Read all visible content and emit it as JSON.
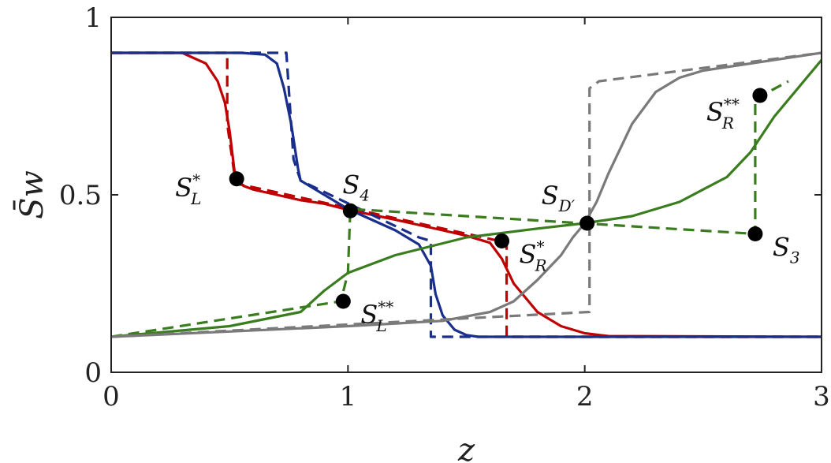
{
  "chart_data": {
    "type": "line",
    "xlabel": "z",
    "ylabel": "S̄w",
    "xlim": [
      0,
      3
    ],
    "ylim": [
      0,
      1
    ],
    "xticks": [
      0,
      1,
      2,
      3
    ],
    "yticks": [
      0,
      0.5,
      1
    ],
    "xtick_labels": [
      "0",
      "1",
      "2",
      "3"
    ],
    "ytick_labels": [
      "0",
      "0.5",
      "1"
    ],
    "grid": false,
    "series": [
      {
        "color": "#c00000",
        "style": "solid",
        "x": [
          0,
          0.3,
          0.4,
          0.45,
          0.48,
          0.5,
          0.52,
          0.54,
          0.56,
          0.6,
          0.7,
          0.8,
          0.9,
          1.0,
          1.2,
          1.4,
          1.5,
          1.6,
          1.65,
          1.7,
          1.8,
          1.9,
          2.0,
          2.1,
          3.0
        ],
        "y": [
          0.9,
          0.9,
          0.87,
          0.82,
          0.76,
          0.68,
          0.57,
          0.535,
          0.525,
          0.515,
          0.5,
          0.485,
          0.475,
          0.458,
          0.43,
          0.4,
          0.385,
          0.365,
          0.32,
          0.25,
          0.17,
          0.13,
          0.11,
          0.102,
          0.1
        ]
      },
      {
        "color": "#c00000",
        "style": "dashed",
        "x": [
          0,
          0.49,
          0.49,
          0.52,
          0.54,
          1.64,
          1.67,
          1.67,
          3.0
        ],
        "y": [
          0.9,
          0.9,
          0.7,
          0.56,
          0.53,
          0.37,
          0.37,
          0.1,
          0.1
        ]
      },
      {
        "color": "#1a2e8c",
        "style": "solid",
        "x": [
          0,
          0.55,
          0.65,
          0.7,
          0.73,
          0.76,
          0.79,
          0.8,
          0.9,
          1.0,
          1.2,
          1.3,
          1.35,
          1.37,
          1.4,
          1.45,
          1.5,
          1.55,
          1.6,
          3.0
        ],
        "y": [
          0.9,
          0.9,
          0.895,
          0.87,
          0.8,
          0.7,
          0.57,
          0.54,
          0.5,
          0.46,
          0.4,
          0.36,
          0.3,
          0.22,
          0.16,
          0.12,
          0.105,
          0.1,
          0.1,
          0.1
        ]
      },
      {
        "color": "#1a2e8c",
        "style": "dashed",
        "x": [
          0,
          0.74,
          0.77,
          0.8,
          1.3,
          1.35,
          1.35,
          3.0
        ],
        "y": [
          0.9,
          0.9,
          0.6,
          0.54,
          0.38,
          0.37,
          0.1,
          0.1
        ]
      },
      {
        "color": "#3a7d1e",
        "style": "solid",
        "x": [
          0,
          0.5,
          0.8,
          0.9,
          1.0,
          1.2,
          1.5,
          1.8,
          2.0,
          2.2,
          2.4,
          2.6,
          2.7,
          2.8,
          3.0
        ],
        "y": [
          0.1,
          0.13,
          0.17,
          0.23,
          0.28,
          0.33,
          0.38,
          0.405,
          0.42,
          0.44,
          0.48,
          0.55,
          0.62,
          0.72,
          0.88
        ]
      },
      {
        "color": "#3a7d1e",
        "style": "dashed",
        "x": [
          0,
          0.97,
          1.0,
          1.01,
          2.72,
          2.72,
          2.86,
          2.86
        ],
        "y": [
          0.1,
          0.2,
          0.28,
          0.46,
          0.39,
          0.77,
          0.82,
          0.82
        ]
      },
      {
        "color": "#7a7a7a",
        "style": "solid",
        "x": [
          0,
          0.5,
          1.0,
          1.4,
          1.6,
          1.7,
          1.8,
          1.9,
          1.95,
          2.0,
          2.05,
          2.1,
          2.2,
          2.3,
          2.4,
          2.5,
          3.0
        ],
        "y": [
          0.1,
          0.115,
          0.13,
          0.145,
          0.17,
          0.2,
          0.26,
          0.33,
          0.38,
          0.42,
          0.48,
          0.56,
          0.7,
          0.79,
          0.83,
          0.85,
          0.9
        ]
      },
      {
        "color": "#7a7a7a",
        "style": "dashed",
        "x": [
          0,
          2.02,
          2.02,
          2.06,
          3.0
        ],
        "y": [
          0.1,
          0.17,
          0.8,
          0.82,
          0.9
        ]
      }
    ],
    "annotations": [
      {
        "base": "S",
        "sub": "L",
        "sup": "*",
        "x": 0.53,
        "y": 0.545,
        "label_side": "left"
      },
      {
        "base": "S",
        "sub": "4",
        "sup": "",
        "x": 1.01,
        "y": 0.455,
        "label_side": "above"
      },
      {
        "base": "S",
        "sub": "R",
        "sup": "*",
        "x": 1.65,
        "y": 0.37,
        "label_side": "right"
      },
      {
        "base": "S",
        "sub": "L",
        "sup": "**",
        "x": 0.98,
        "y": 0.2,
        "label_side": "right"
      },
      {
        "base": "S",
        "sub": "D′",
        "sup": "",
        "x": 2.01,
        "y": 0.42,
        "label_side": "above-left"
      },
      {
        "base": "S",
        "sub": "3",
        "sup": "",
        "x": 2.72,
        "y": 0.39,
        "label_side": "right"
      },
      {
        "base": "S",
        "sub": "R",
        "sup": "**",
        "x": 2.74,
        "y": 0.78,
        "label_side": "left-below"
      }
    ]
  }
}
